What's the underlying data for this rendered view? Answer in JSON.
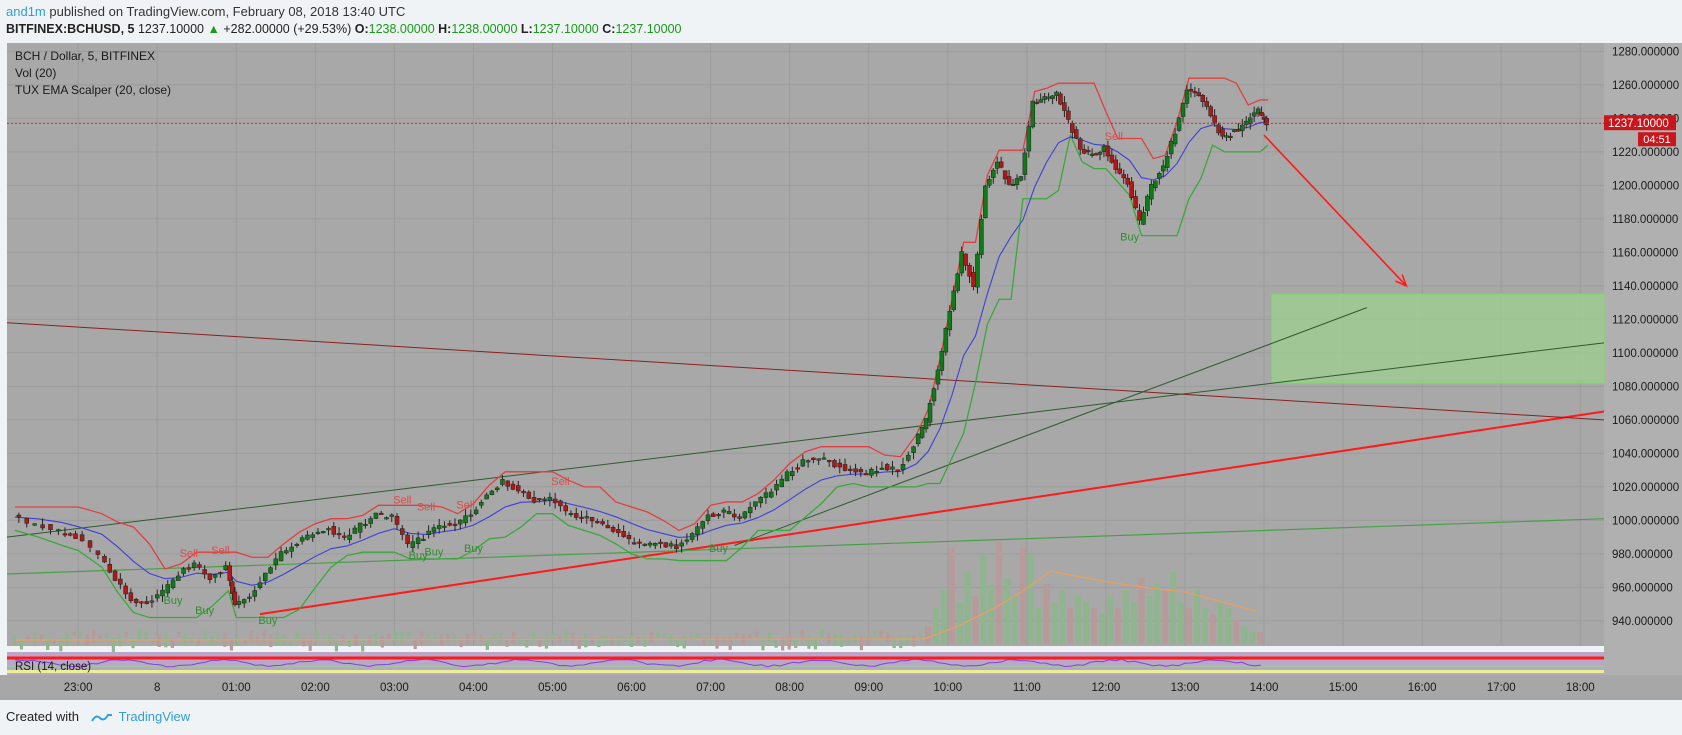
{
  "header": {
    "author": "and1m",
    "published_text": " published on TradingView.com, February 08, 2018 13:40 UTC"
  },
  "info": {
    "symbol": "BITFINEX:BCHUSD, 5",
    "last": "1237.10000",
    "change": "+282.00000 (+29.53%)",
    "o_label": "O:",
    "o": "1238.00000",
    "h_label": "H:",
    "h": "1238.00000",
    "l_label": "L:",
    "l": "1237.10000",
    "c_label": "C:",
    "c": "1237.10000"
  },
  "legend": {
    "line1": "BCH / Dollar, 5, BITFINEX",
    "line2": "Vol (20)",
    "line3": "TUX EMA Scalper (20, close)",
    "rsi": "RSI (14, close)"
  },
  "footer": {
    "created_with": "Created with",
    "brand": "TradingView"
  },
  "colors": {
    "plot_bg": "#a8a8a8",
    "up": "#0f7a17",
    "down": "#b01818",
    "ema": "#3f3fd8",
    "upper_band": "#e04040",
    "lower_band": "#3aa83a",
    "trend_red": "#ff1a1a",
    "target_zone": "#9fd08f"
  },
  "chart_data": {
    "type": "candlestick",
    "symbol": "BITFINEX:BCHUSD",
    "interval": "5",
    "y_axis": {
      "min": 925,
      "max": 1285,
      "ticks": [
        940,
        960,
        980,
        1000,
        1020,
        1040,
        1060,
        1080,
        1100,
        1120,
        1140,
        1160,
        1180,
        1200,
        1220,
        1240,
        1260,
        1280
      ],
      "tick_labels": [
        "940.000000",
        "960.000000",
        "980.000000",
        "1000.000000",
        "1020.000000",
        "1040.000000",
        "1060.000000",
        "1080.000000",
        "1100.000000",
        "1120.000000",
        "1140.000000",
        "1160.000000",
        "1180.000000",
        "1200.000000",
        "1220.000000",
        "1240.000000",
        "1260.000000",
        "1280.000000"
      ]
    },
    "x_axis": {
      "start": "22:15",
      "end": "18:15",
      "tick_labels": [
        "23:00",
        "8",
        "01:00",
        "02:00",
        "03:00",
        "04:00",
        "05:00",
        "06:00",
        "07:00",
        "08:00",
        "09:00",
        "10:00",
        "11:00",
        "12:00",
        "13:00",
        "14:00",
        "15:00",
        "16:00",
        "17:00",
        "18:00"
      ],
      "tick_hours": [
        23,
        24,
        25,
        26,
        27,
        28,
        29,
        30,
        31,
        32,
        33,
        34,
        35,
        36,
        37,
        38,
        39,
        40,
        41,
        42
      ]
    },
    "price_series": [
      {
        "t": 22.2,
        "p": 1002
      },
      {
        "t": 22.5,
        "p": 998
      },
      {
        "t": 22.8,
        "p": 993
      },
      {
        "t": 23.0,
        "p": 990
      },
      {
        "t": 23.3,
        "p": 980
      },
      {
        "t": 23.5,
        "p": 965
      },
      {
        "t": 23.7,
        "p": 953
      },
      {
        "t": 23.9,
        "p": 950
      },
      {
        "t": 24.1,
        "p": 957
      },
      {
        "t": 24.3,
        "p": 968
      },
      {
        "t": 24.5,
        "p": 975
      },
      {
        "t": 24.7,
        "p": 966
      },
      {
        "t": 24.9,
        "p": 972
      },
      {
        "t": 25.0,
        "p": 950
      },
      {
        "t": 25.2,
        "p": 955
      },
      {
        "t": 25.4,
        "p": 968
      },
      {
        "t": 25.6,
        "p": 980
      },
      {
        "t": 25.8,
        "p": 987
      },
      {
        "t": 26.0,
        "p": 992
      },
      {
        "t": 26.2,
        "p": 995
      },
      {
        "t": 26.4,
        "p": 989
      },
      {
        "t": 26.6,
        "p": 997
      },
      {
        "t": 26.8,
        "p": 1003
      },
      {
        "t": 27.0,
        "p": 1002
      },
      {
        "t": 27.2,
        "p": 985
      },
      {
        "t": 27.4,
        "p": 990
      },
      {
        "t": 27.6,
        "p": 997
      },
      {
        "t": 27.8,
        "p": 998
      },
      {
        "t": 28.0,
        "p": 1004
      },
      {
        "t": 28.2,
        "p": 1015
      },
      {
        "t": 28.4,
        "p": 1023
      },
      {
        "t": 28.6,
        "p": 1018
      },
      {
        "t": 28.8,
        "p": 1012
      },
      {
        "t": 29.0,
        "p": 1014
      },
      {
        "t": 29.2,
        "p": 1005
      },
      {
        "t": 29.4,
        "p": 1002
      },
      {
        "t": 29.6,
        "p": 999
      },
      {
        "t": 29.8,
        "p": 994
      },
      {
        "t": 30.0,
        "p": 988
      },
      {
        "t": 30.2,
        "p": 985
      },
      {
        "t": 30.4,
        "p": 986
      },
      {
        "t": 30.6,
        "p": 984
      },
      {
        "t": 30.8,
        "p": 992
      },
      {
        "t": 31.0,
        "p": 1003
      },
      {
        "t": 31.2,
        "p": 1005
      },
      {
        "t": 31.4,
        "p": 1002
      },
      {
        "t": 31.6,
        "p": 1010
      },
      {
        "t": 31.8,
        "p": 1018
      },
      {
        "t": 32.0,
        "p": 1028
      },
      {
        "t": 32.2,
        "p": 1035
      },
      {
        "t": 32.4,
        "p": 1038
      },
      {
        "t": 32.6,
        "p": 1033
      },
      {
        "t": 32.8,
        "p": 1030
      },
      {
        "t": 33.0,
        "p": 1028
      },
      {
        "t": 33.2,
        "p": 1032
      },
      {
        "t": 33.4,
        "p": 1030
      },
      {
        "t": 33.6,
        "p": 1045
      },
      {
        "t": 33.75,
        "p": 1060
      },
      {
        "t": 33.9,
        "p": 1090
      },
      {
        "t": 34.05,
        "p": 1125
      },
      {
        "t": 34.2,
        "p": 1160
      },
      {
        "t": 34.35,
        "p": 1140
      },
      {
        "t": 34.5,
        "p": 1200
      },
      {
        "t": 34.65,
        "p": 1215
      },
      {
        "t": 34.8,
        "p": 1200
      },
      {
        "t": 34.95,
        "p": 1205
      },
      {
        "t": 35.1,
        "p": 1250
      },
      {
        "t": 35.25,
        "p": 1252
      },
      {
        "t": 35.4,
        "p": 1255
      },
      {
        "t": 35.55,
        "p": 1238
      },
      {
        "t": 35.7,
        "p": 1222
      },
      {
        "t": 35.85,
        "p": 1218
      },
      {
        "t": 36.0,
        "p": 1222
      },
      {
        "t": 36.15,
        "p": 1210
      },
      {
        "t": 36.3,
        "p": 1202
      },
      {
        "t": 36.45,
        "p": 1178
      },
      {
        "t": 36.6,
        "p": 1200
      },
      {
        "t": 36.75,
        "p": 1212
      },
      {
        "t": 36.9,
        "p": 1232
      },
      {
        "t": 37.05,
        "p": 1258
      },
      {
        "t": 37.2,
        "p": 1255
      },
      {
        "t": 37.35,
        "p": 1242
      },
      {
        "t": 37.5,
        "p": 1228
      },
      {
        "t": 37.65,
        "p": 1232
      },
      {
        "t": 37.8,
        "p": 1238
      },
      {
        "t": 37.95,
        "p": 1245
      },
      {
        "t": 38.05,
        "p": 1237.1
      }
    ],
    "volume_highlights": [
      {
        "t": 33.75,
        "v": 0.15
      },
      {
        "t": 33.85,
        "v": 0.3
      },
      {
        "t": 33.95,
        "v": 0.45
      },
      {
        "t": 34.05,
        "v": 0.8
      },
      {
        "t": 34.15,
        "v": 0.35
      },
      {
        "t": 34.25,
        "v": 0.6
      },
      {
        "t": 34.35,
        "v": 0.4
      },
      {
        "t": 34.45,
        "v": 0.75
      },
      {
        "t": 34.55,
        "v": 0.5
      },
      {
        "t": 34.65,
        "v": 0.85
      },
      {
        "t": 34.75,
        "v": 0.55
      },
      {
        "t": 34.85,
        "v": 0.4
      },
      {
        "t": 34.95,
        "v": 0.8
      },
      {
        "t": 35.05,
        "v": 0.75
      },
      {
        "t": 35.15,
        "v": 0.3
      },
      {
        "t": 35.25,
        "v": 0.5
      },
      {
        "t": 35.35,
        "v": 0.35
      },
      {
        "t": 35.45,
        "v": 0.45
      },
      {
        "t": 35.55,
        "v": 0.3
      },
      {
        "t": 35.65,
        "v": 0.4
      },
      {
        "t": 35.75,
        "v": 0.35
      },
      {
        "t": 35.85,
        "v": 0.3
      },
      {
        "t": 35.95,
        "v": 0.25
      },
      {
        "t": 36.05,
        "v": 0.4
      },
      {
        "t": 36.15,
        "v": 0.3
      },
      {
        "t": 36.25,
        "v": 0.45
      },
      {
        "t": 36.35,
        "v": 0.35
      },
      {
        "t": 36.45,
        "v": 0.55
      },
      {
        "t": 36.55,
        "v": 0.4
      },
      {
        "t": 36.65,
        "v": 0.5
      },
      {
        "t": 36.75,
        "v": 0.45
      },
      {
        "t": 36.85,
        "v": 0.6
      },
      {
        "t": 36.95,
        "v": 0.35
      },
      {
        "t": 37.05,
        "v": 0.3
      },
      {
        "t": 37.15,
        "v": 0.45
      },
      {
        "t": 37.25,
        "v": 0.3
      },
      {
        "t": 37.35,
        "v": 0.25
      },
      {
        "t": 37.45,
        "v": 0.35
      },
      {
        "t": 37.55,
        "v": 0.3
      },
      {
        "t": 37.65,
        "v": 0.2
      },
      {
        "t": 37.75,
        "v": 0.15
      },
      {
        "t": 37.85,
        "v": 0.1
      },
      {
        "t": 37.95,
        "v": 0.1
      }
    ],
    "current_price": {
      "value": 1237.1,
      "label": "1237.10000",
      "countdown": "04:51"
    },
    "signals": [
      {
        "type": "Sell",
        "t": 24.4,
        "p": 978
      },
      {
        "type": "Sell",
        "t": 24.8,
        "p": 980
      },
      {
        "type": "Buy",
        "t": 24.2,
        "p": 950
      },
      {
        "type": "Buy",
        "t": 24.6,
        "p": 944
      },
      {
        "type": "Buy",
        "t": 25.4,
        "p": 938
      },
      {
        "type": "Sell",
        "t": 27.1,
        "p": 1010
      },
      {
        "type": "Sell",
        "t": 27.4,
        "p": 1006
      },
      {
        "type": "Sell",
        "t": 27.9,
        "p": 1007
      },
      {
        "type": "Buy",
        "t": 27.3,
        "p": 977
      },
      {
        "type": "Buy",
        "t": 27.5,
        "p": 979
      },
      {
        "type": "Buy",
        "t": 28.0,
        "p": 981
      },
      {
        "type": "Sell",
        "t": 29.1,
        "p": 1021
      },
      {
        "type": "Buy",
        "t": 31.1,
        "p": 981
      },
      {
        "type": "Sell",
        "t": 36.1,
        "p": 1227
      },
      {
        "type": "Buy",
        "t": 36.3,
        "p": 1167
      }
    ],
    "trendlines": [
      {
        "name": "red-support",
        "color": "#ff1a1a",
        "width": 2,
        "from": {
          "t": 25.3,
          "p": 944
        },
        "to": {
          "t": 42.3,
          "p": 1065
        }
      },
      {
        "name": "dark-red-resistance",
        "color": "#8a2020",
        "width": 1,
        "from": {
          "t": 22.1,
          "p": 1118
        },
        "to": {
          "t": 42.3,
          "p": 1060
        }
      },
      {
        "name": "dark-green-channel-1",
        "color": "#2f5a2f",
        "width": 1,
        "from": {
          "t": 22.1,
          "p": 990
        },
        "to": {
          "t": 42.3,
          "p": 1106
        }
      },
      {
        "name": "dark-green-channel-2",
        "color": "#2f5a2f",
        "width": 1,
        "from": {
          "t": 31.3,
          "p": 985
        },
        "to": {
          "t": 39.3,
          "p": 1127
        }
      },
      {
        "name": "light-green-floor",
        "color": "#4aa04a",
        "width": 1.2,
        "from": {
          "t": 22.1,
          "p": 968
        },
        "to": {
          "t": 42.3,
          "p": 1001
        }
      }
    ],
    "target_zone": {
      "t_from": 38.1,
      "t_to": 42.3,
      "p_from": 1082,
      "p_to": 1135
    },
    "arrow": {
      "from": {
        "t": 38.0,
        "p": 1230
      },
      "to": {
        "t": 39.8,
        "p": 1140
      }
    },
    "rsi": {
      "min": 0,
      "max": 100,
      "overbought": 70,
      "oversold": 30
    }
  }
}
